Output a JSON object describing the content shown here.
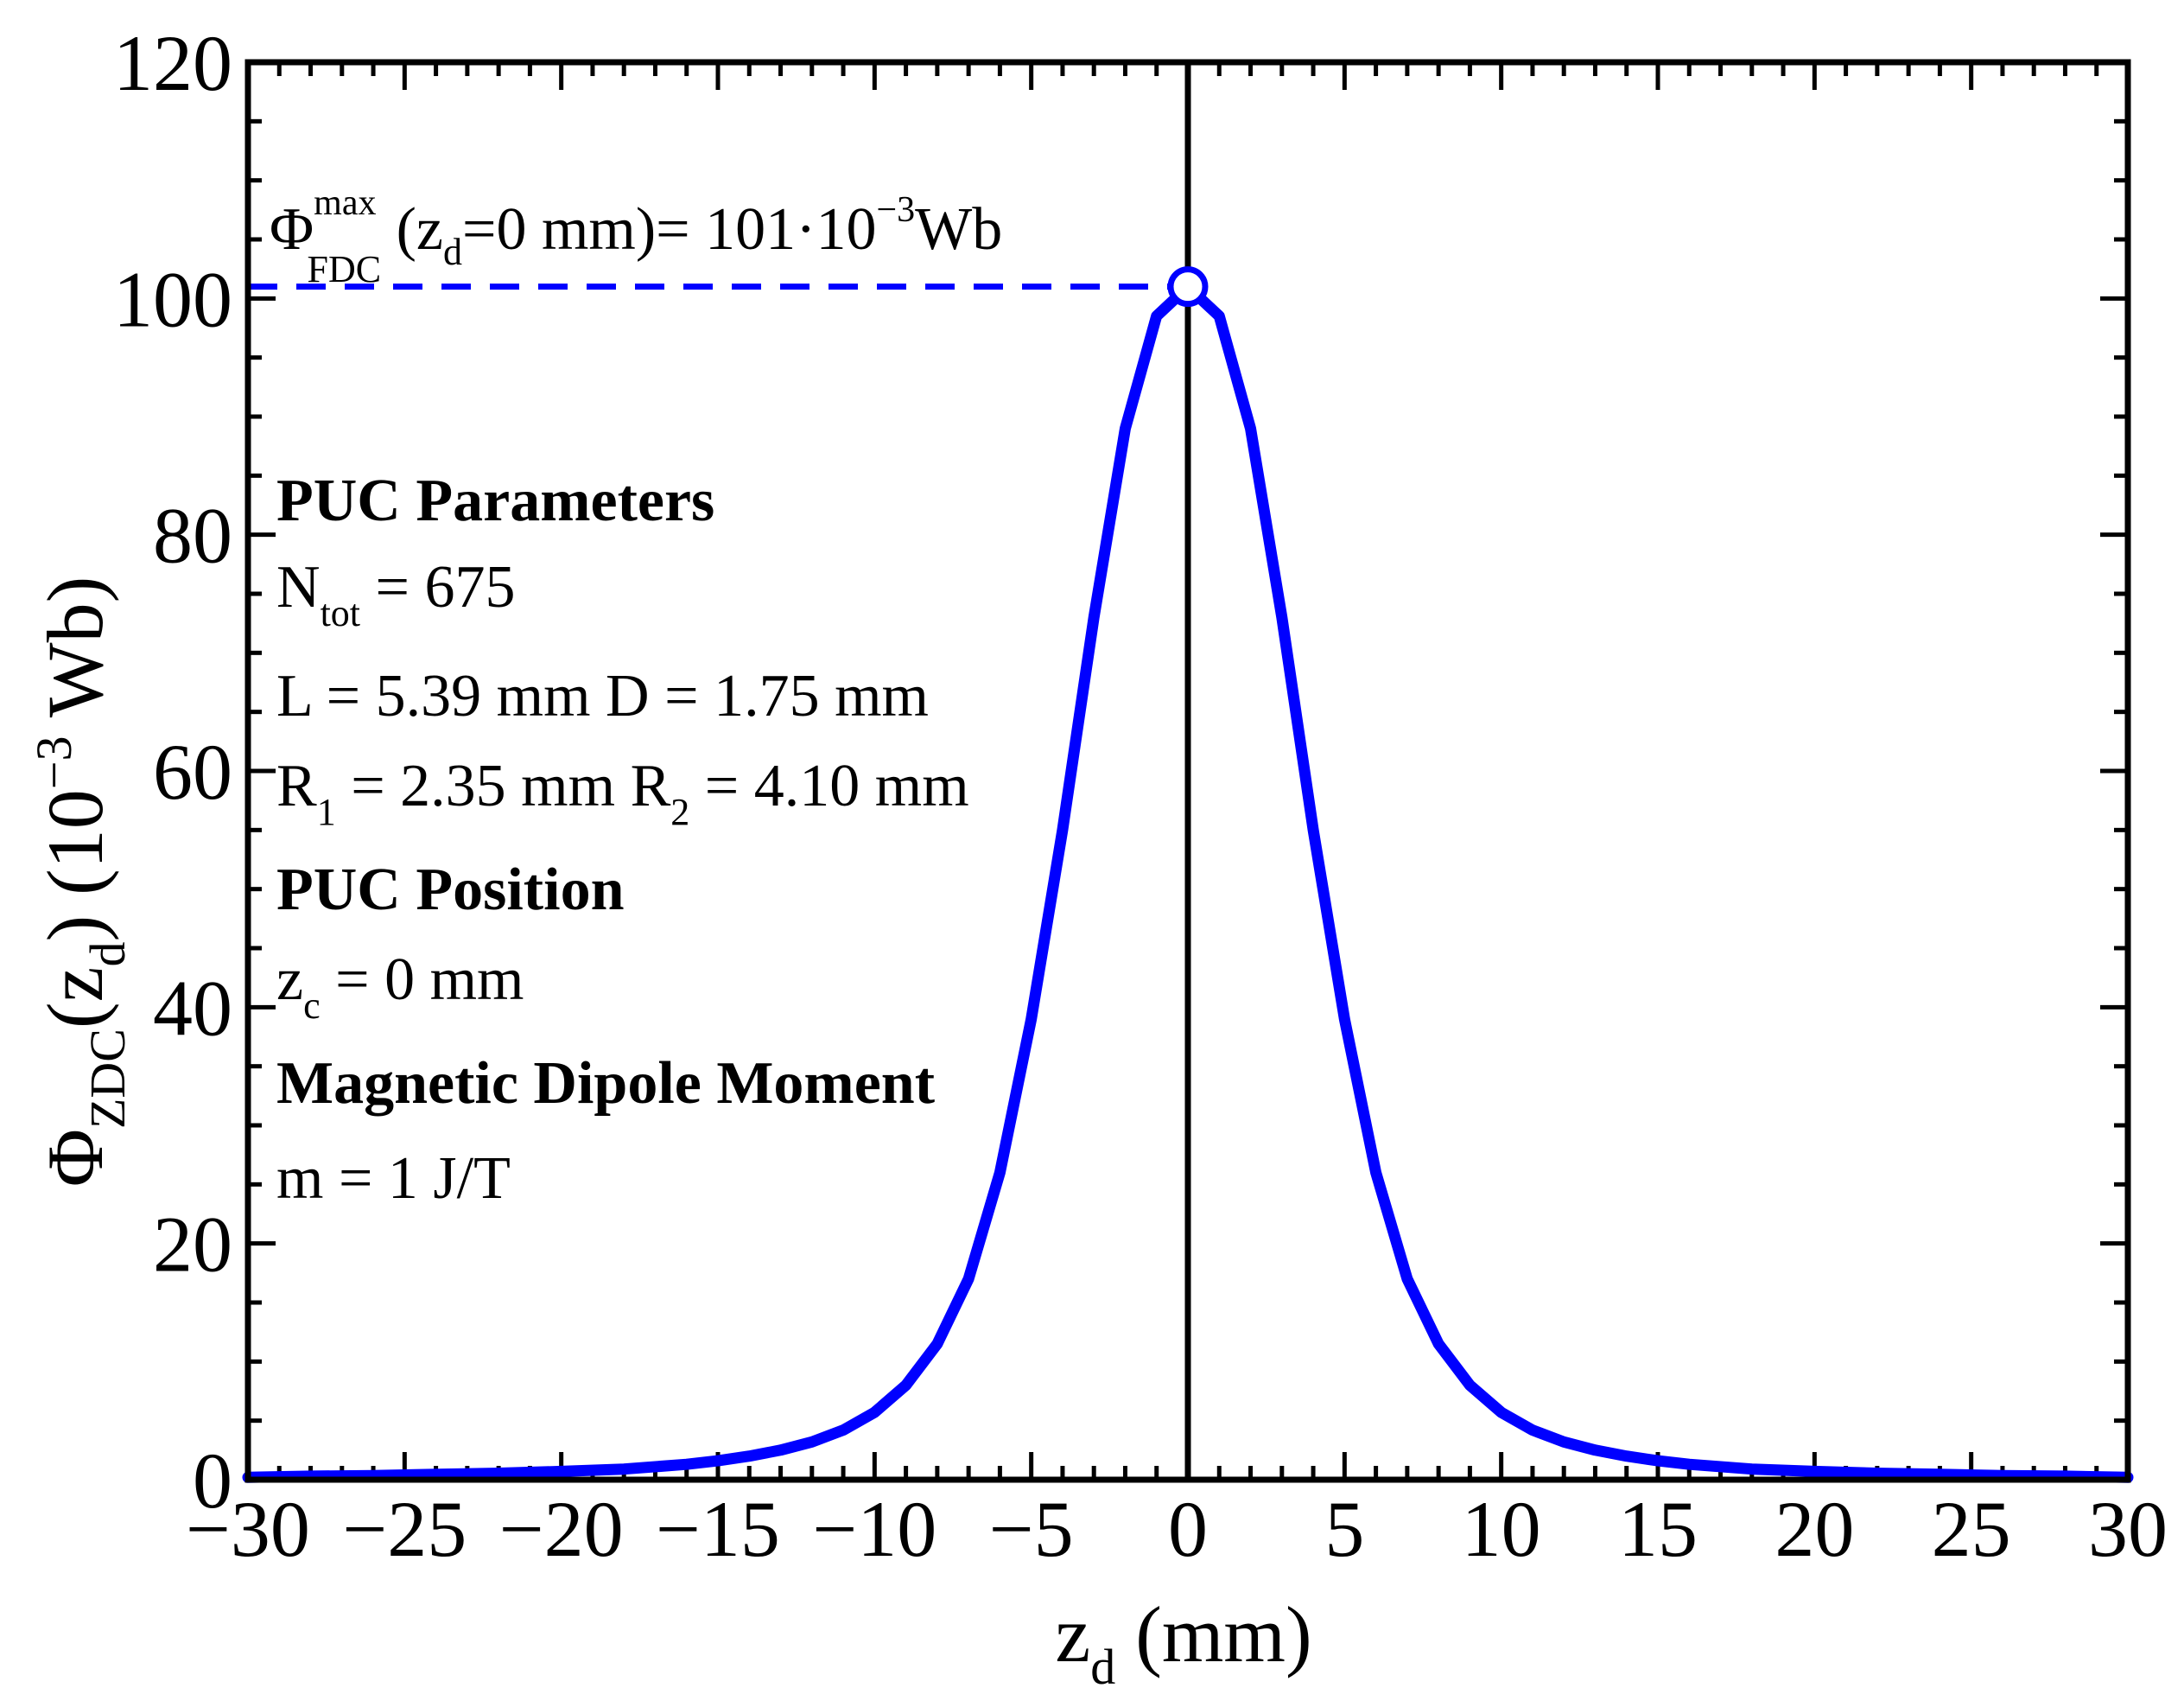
{
  "chart_data": {
    "type": "line",
    "title": "",
    "xlabel": {
      "main": "z",
      "sub": "d",
      "unit": " (mm)"
    },
    "ylabel": {
      "phi": "Φ",
      "sub1": "ZDC",
      "arg_open": "(z",
      "sub2": "d",
      "arg_close": ")",
      "unit_open": " (10",
      "unit_exp": "−3",
      "unit_close": " Wb)"
    },
    "xlim": [
      -30,
      30
    ],
    "ylim": [
      0,
      120
    ],
    "xticks": [
      -30,
      -25,
      -20,
      -15,
      -10,
      -5,
      0,
      5,
      10,
      15,
      20,
      25,
      30
    ],
    "xtick_labels": [
      "−30",
      "−25",
      "−20",
      "−15",
      "−10",
      "−5",
      "0",
      "5",
      "10",
      "15",
      "20",
      "25",
      "30"
    ],
    "yticks": [
      0,
      20,
      40,
      60,
      80,
      100,
      120
    ],
    "ytick_labels": [
      "0",
      "20",
      "40",
      "60",
      "80",
      "100",
      "120"
    ],
    "series": [
      {
        "name": "Φ_ZDC(z_d)",
        "color": "#0000ff",
        "x": [
          -30,
          -28,
          -26,
          -24,
          -22,
          -20,
          -18,
          -16,
          -15,
          -14,
          -13,
          -12,
          -11,
          -10,
          -9,
          -8,
          -7,
          -6,
          -5,
          -4,
          -3,
          -2,
          -1,
          0,
          1,
          2,
          3,
          4,
          5,
          6,
          7,
          8,
          9,
          10,
          11,
          12,
          13,
          14,
          15,
          16,
          18,
          20,
          22,
          24,
          26,
          28,
          30
        ],
        "y": [
          0.2,
          0.3,
          0.35,
          0.45,
          0.55,
          0.7,
          0.9,
          1.3,
          1.6,
          2.0,
          2.5,
          3.2,
          4.2,
          5.7,
          8.0,
          11.5,
          17.0,
          26.0,
          39.0,
          55.0,
          73.0,
          89.0,
          98.5,
          101,
          98.5,
          89.0,
          73.0,
          55.0,
          39.0,
          26.0,
          17.0,
          11.5,
          8.0,
          5.7,
          4.2,
          3.2,
          2.5,
          2.0,
          1.6,
          1.3,
          0.9,
          0.7,
          0.55,
          0.45,
          0.35,
          0.3,
          0.2
        ]
      }
    ],
    "max_point": {
      "x": 0,
      "y": 101
    },
    "reference_line_x": 0,
    "max_annotation": {
      "phi": "Φ",
      "sup": "max",
      "sub": "FDC",
      "mid_open": " (z",
      "mid_sub": "d",
      "mid_close": "=0 mm)= 101·10",
      "exp": "−3",
      "unit": "Wb"
    },
    "annotations": {
      "puc_parameters_heading": "PUC Parameters",
      "ntot_main": "N",
      "ntot_sub": "tot",
      "ntot_value": " = 675",
      "l_d_line": "L = 5.39 mm D = 1.75 mm",
      "r1_main": "R",
      "r1_sub": "1",
      "r1_value": " = 2.35 mm R",
      "r2_sub": "2",
      "r2_value": " = 4.10 mm",
      "puc_position_heading": "PUC Position",
      "zc_main": "z",
      "zc_sub": "c",
      "zc_value": " = 0 mm",
      "dipole_heading": "Magnetic Dipole Moment",
      "m_line": "m = 1 J/T"
    }
  }
}
